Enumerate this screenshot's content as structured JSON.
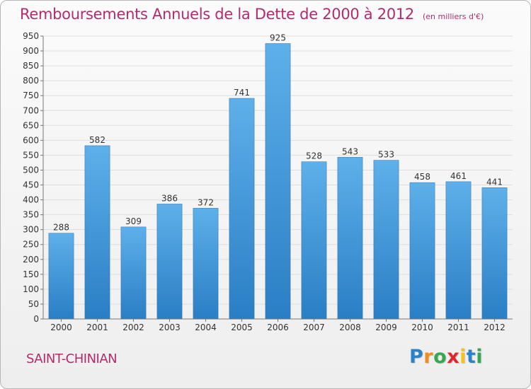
{
  "header": {
    "title": "Remboursements Annuels de la Dette de 2000 à 2012",
    "unit": "(en milliers d'€)"
  },
  "footer": {
    "commune": "SAINT-CHINIAN",
    "logo_letters": [
      "P",
      "r",
      "o",
      "x",
      "i",
      "t",
      "i"
    ],
    "logo_colors": [
      "#2b84c8",
      "#f28c1e",
      "#35a84f",
      "#e0262d",
      "#f2c21e",
      "#2b84c8",
      "#35a84f"
    ]
  },
  "colors": {
    "bar_top": "#5eb0ea",
    "bar_bottom": "#2a7ec4",
    "title": "#b22c6d"
  },
  "chart_data": {
    "type": "bar",
    "categories": [
      "2000",
      "2001",
      "2002",
      "2003",
      "2004",
      "2005",
      "2006",
      "2007",
      "2008",
      "2009",
      "2010",
      "2011",
      "2012"
    ],
    "values": [
      288,
      582,
      309,
      386,
      372,
      741,
      925,
      528,
      543,
      533,
      458,
      461,
      441
    ],
    "ylim": [
      0,
      950
    ],
    "yticks": [
      0,
      50,
      100,
      150,
      200,
      250,
      300,
      350,
      400,
      450,
      500,
      550,
      600,
      650,
      700,
      750,
      800,
      850,
      900,
      950
    ],
    "grid": true,
    "data_labels": true
  }
}
